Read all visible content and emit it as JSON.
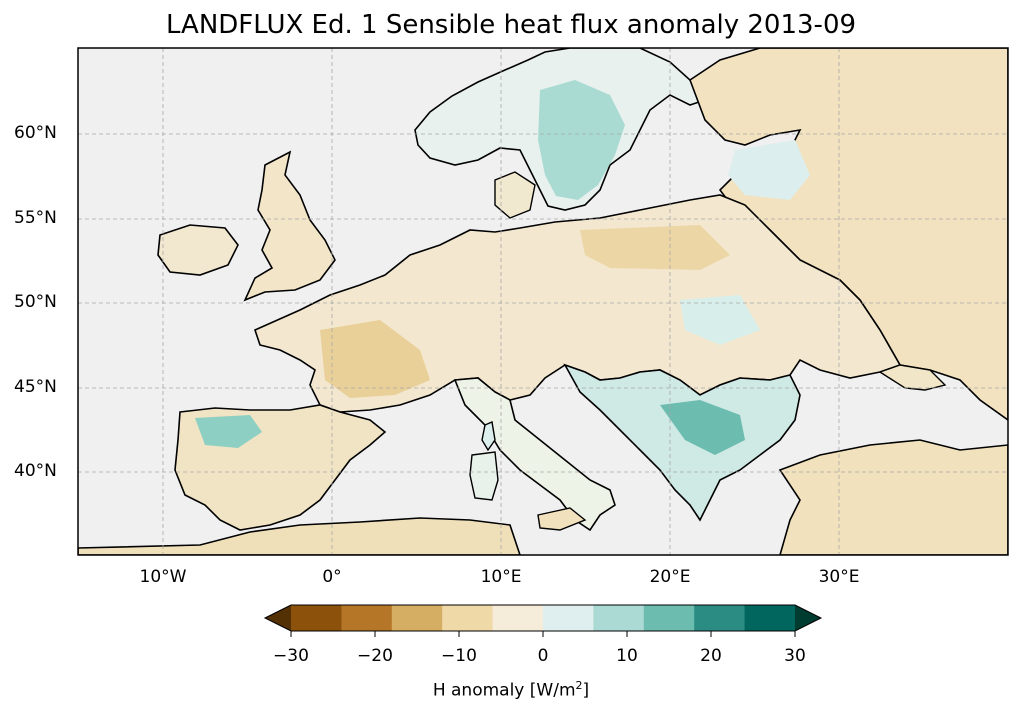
{
  "map": {
    "title": "LANDFLUX Ed. 1 Sensible heat flux anomaly 2013-09",
    "lat_ticks": [
      "60°N",
      "55°N",
      "50°N",
      "45°N",
      "40°N"
    ],
    "lon_ticks": [
      "10°W",
      "0°",
      "10°E",
      "20°E",
      "30°E"
    ]
  },
  "colorbar": {
    "label_prefix": "H anomaly [W/m",
    "label_sup": "2",
    "label_suffix": "]",
    "ticks": [
      "−30",
      "−20",
      "−10",
      "0",
      "10",
      "20",
      "30"
    ],
    "colors": [
      "#543005",
      "#8c510a",
      "#b57628",
      "#d5ae63",
      "#efd9a7",
      "#f5ecda",
      "#dfefef",
      "#aadad3",
      "#6cbcb0",
      "#2a8c82",
      "#01665e",
      "#003c30"
    ]
  },
  "colors": {
    "ocean": "#f0f0f0",
    "land_warm": "#f1e4c6",
    "land_tan": "#e6c98d",
    "land_cool": "#d7eeeb",
    "land_teal": "#8ccfc2",
    "coast": "#000000"
  }
}
